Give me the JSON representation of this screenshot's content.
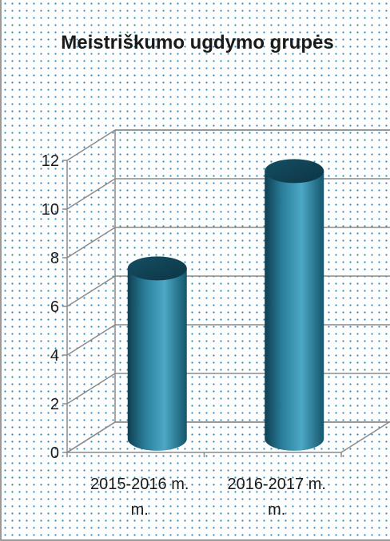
{
  "chart_data": {
    "type": "bar",
    "style": "3d-cylinder",
    "title": "Meistriškumo ugdymo grupės",
    "categories": [
      "2015-2016 m. m.",
      "2016-2017 m. m."
    ],
    "category_lines": [
      [
        "2015-2016 m.",
        "m."
      ],
      [
        "2016-2017 m.",
        "m."
      ]
    ],
    "values": [
      7,
      11
    ],
    "ylim": [
      0,
      12
    ],
    "yticks": [
      "0",
      "2",
      "4",
      "6",
      "8",
      "10",
      "12"
    ],
    "grid": true,
    "legend": "none",
    "colors": {
      "bar": "#2a7f9c",
      "bar_dark": "#0f3f50",
      "bar_light": "#4ba8c6",
      "grid": "#8a8a8a",
      "dots": "#2e86c1"
    }
  }
}
